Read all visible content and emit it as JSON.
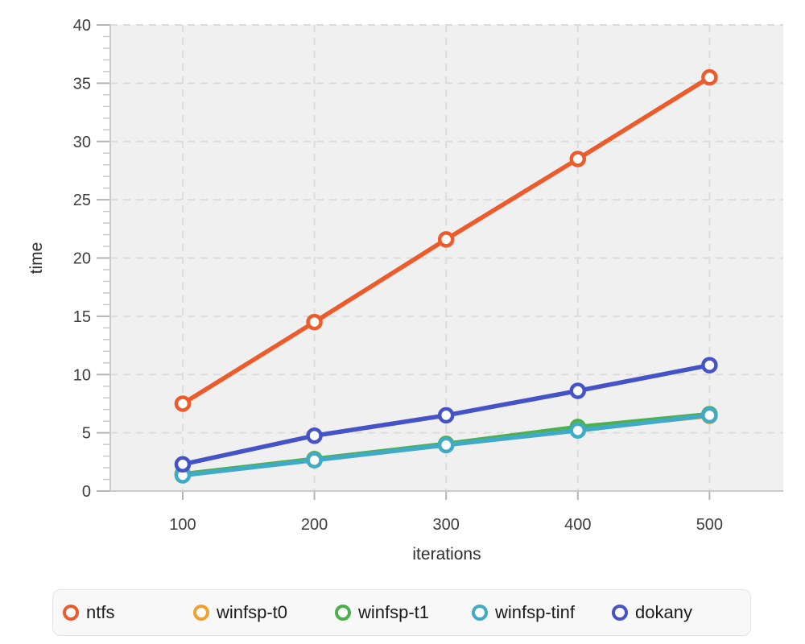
{
  "chart_data": {
    "type": "line",
    "title": "",
    "xlabel": "iterations",
    "ylabel": "time",
    "x": [
      100,
      200,
      300,
      400,
      500
    ],
    "x_ticks": [
      "100",
      "200",
      "300",
      "400",
      "500"
    ],
    "y_ticks": [
      "0",
      "5",
      "10",
      "15",
      "20",
      "25",
      "30",
      "35",
      "40"
    ],
    "xlim": [
      45,
      556
    ],
    "ylim": [
      0,
      40
    ],
    "y_major_step": 5,
    "y_minor_step": 1,
    "grid": "dashed",
    "legend_position": "bottom",
    "marker_style": "open-circle",
    "series": [
      {
        "name": "ntfs",
        "color": "#ed5a2b",
        "values": [
          7.5,
          14.5,
          21.6,
          28.5,
          35.5
        ]
      },
      {
        "name": "winfsp-t0",
        "color": "#f0a132",
        "values": [
          1.45,
          2.7,
          3.95,
          5.3,
          6.45
        ]
      },
      {
        "name": "winfsp-t1",
        "color": "#4cb04c",
        "values": [
          1.45,
          2.75,
          4.05,
          5.5,
          6.6
        ]
      },
      {
        "name": "winfsp-tinf",
        "color": "#41aac6",
        "values": [
          1.35,
          2.65,
          3.95,
          5.2,
          6.5
        ]
      },
      {
        "name": "dokany",
        "color": "#4653c8",
        "values": [
          2.3,
          4.75,
          6.5,
          8.6,
          10.8
        ]
      }
    ],
    "colors": {
      "page_bg": "#ffffff",
      "panel_bg": "#f0f0f0",
      "grid": "#dcdcdc",
      "axis": "#cbcbcb",
      "tick": "#b5b5b5",
      "minor_tick": "#c9c9c9",
      "tick_label": "#3d3d3d",
      "axis_label": "#2f2f2f",
      "legend_text": "#1b1b1b",
      "legend_bg": "#f8f8f8",
      "legend_border": "#e4e4e4"
    }
  }
}
